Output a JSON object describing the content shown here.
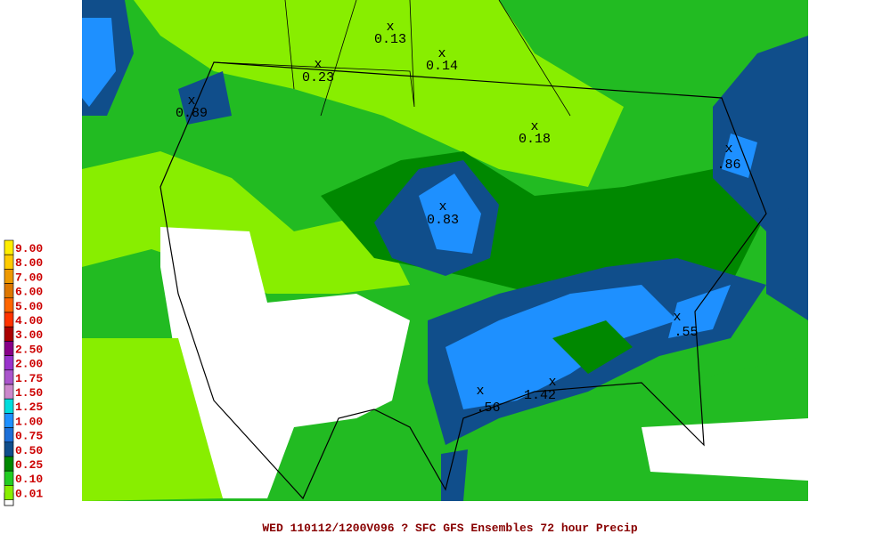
{
  "map": {
    "annotations": [
      {
        "marker": "x",
        "value": "0.13"
      },
      {
        "marker": "x",
        "value": "0.14"
      },
      {
        "marker": "x",
        "value": "0.23"
      },
      {
        "marker": "x",
        "value": "0.89"
      },
      {
        "marker": "x",
        "value": "0.18"
      },
      {
        "marker": "x",
        "value": ".86"
      },
      {
        "marker": "x",
        "value": "0.83"
      },
      {
        "marker": "x",
        "value": ".55"
      },
      {
        "marker": "x",
        "value": ".56"
      },
      {
        "marker": "x",
        "value": "1.42"
      }
    ]
  },
  "legend": {
    "entries": [
      {
        "label": "9.00",
        "color": "#ffee00"
      },
      {
        "label": "8.00",
        "color": "#ffcc00"
      },
      {
        "label": "7.00",
        "color": "#ee9900"
      },
      {
        "label": "6.00",
        "color": "#dd7700"
      },
      {
        "label": "5.00",
        "color": "#ff6600"
      },
      {
        "label": "4.00",
        "color": "#ff3300"
      },
      {
        "label": "3.00",
        "color": "#aa0000"
      },
      {
        "label": "2.50",
        "color": "#880088"
      },
      {
        "label": "2.00",
        "color": "#9933cc"
      },
      {
        "label": "1.75",
        "color": "#aa55cc"
      },
      {
        "label": "1.50",
        "color": "#cc88cc"
      },
      {
        "label": "1.25",
        "color": "#00dddd"
      },
      {
        "label": "1.00",
        "color": "#1e90ff"
      },
      {
        "label": "0.75",
        "color": "#1c6fd8"
      },
      {
        "label": "0.50",
        "color": "#104e8b"
      },
      {
        "label": "0.25",
        "color": "#008800"
      },
      {
        "label": "0.10",
        "color": "#22cc22"
      },
      {
        "label": "0.01",
        "color": "#88ee00"
      }
    ]
  },
  "footer": {
    "text": "WED 110112/1200V096  ? SFC GFS Ensembles 72 hour Precip"
  }
}
